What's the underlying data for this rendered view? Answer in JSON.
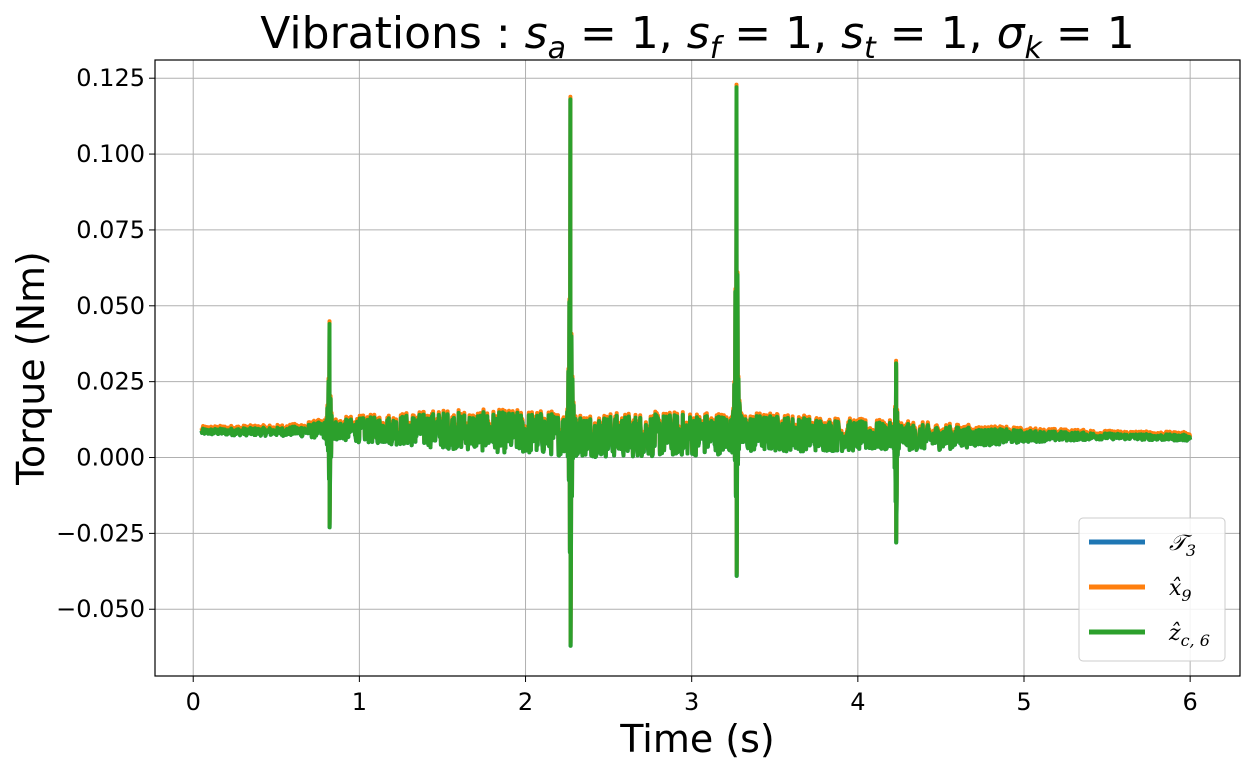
{
  "chart_data": {
    "type": "line",
    "title": "Vibrations : s_a = 1, s_f = 1, s_t = 1, σ_k = 1",
    "title_parts": {
      "prefix": "Vibrations : ",
      "terms": [
        {
          "sym": "s",
          "sub": "a",
          "val": "1"
        },
        {
          "sym": "s",
          "sub": "f",
          "val": "1"
        },
        {
          "sym": "s",
          "sub": "t",
          "val": "1"
        },
        {
          "sym": "σ",
          "sub": "k",
          "val": "1"
        }
      ]
    },
    "xlabel": "Time (s)",
    "ylabel": "Torque (Nm)",
    "xlim": [
      -0.23,
      6.3
    ],
    "ylim": [
      -0.072,
      0.131
    ],
    "xticks": [
      0,
      1,
      2,
      3,
      4,
      5,
      6
    ],
    "xtick_labels": [
      "0",
      "1",
      "2",
      "3",
      "4",
      "5",
      "6"
    ],
    "yticks": [
      -0.05,
      -0.025,
      0.0,
      0.025,
      0.05,
      0.075,
      0.1,
      0.125
    ],
    "ytick_labels": [
      "−0.050",
      "−0.025",
      "0.000",
      "0.025",
      "0.050",
      "0.075",
      "0.100",
      "0.125"
    ],
    "grid": true,
    "legend_position": "bottom-right",
    "colors": [
      "#1f77b4",
      "#ff7f0e",
      "#2ca02c"
    ],
    "series": [
      {
        "name": "𝒯3",
        "color": "#1f77b4",
        "label_sym": "𝒯",
        "label_sub": "3"
      },
      {
        "name": "x̂9",
        "color": "#ff7f0e",
        "label_sym": "x̂",
        "label_sub": "9"
      },
      {
        "name": "ẑc, 6",
        "color": "#2ca02c",
        "label_sym": "ẑ",
        "label_sub": "c, 6"
      }
    ],
    "baseline": {
      "x": [
        0.05,
        0.5,
        0.8,
        1.0,
        1.5,
        2.0,
        2.5,
        3.0,
        3.5,
        4.0,
        4.5,
        5.0,
        5.5,
        6.0
      ],
      "y": [
        0.0085,
        0.0085,
        0.009,
        0.009,
        0.009,
        0.008,
        0.007,
        0.0075,
        0.008,
        0.007,
        0.0065,
        0.007,
        0.007,
        0.0065
      ]
    },
    "noise_amplitude": {
      "x": [
        0.05,
        0.6,
        0.8,
        1.0,
        1.5,
        2.0,
        2.5,
        3.0,
        3.5,
        4.0,
        4.5,
        5.0,
        5.5,
        6.0
      ],
      "y": [
        0.001,
        0.0015,
        0.003,
        0.004,
        0.006,
        0.007,
        0.007,
        0.007,
        0.006,
        0.005,
        0.004,
        0.002,
        0.001,
        0.001
      ]
    },
    "spikes": [
      {
        "x": 0.82,
        "max": 0.044,
        "min": -0.023
      },
      {
        "x": 2.27,
        "max": 0.118,
        "min": -0.062
      },
      {
        "x": 3.27,
        "max": 0.122,
        "min": -0.039
      },
      {
        "x": 4.23,
        "max": 0.031,
        "min": -0.028
      }
    ]
  }
}
